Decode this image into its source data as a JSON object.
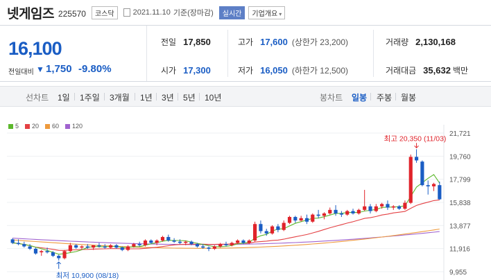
{
  "header": {
    "name": "넷게임즈",
    "code": "225570",
    "market": "코스닥",
    "date": "2021.11.10",
    "basis": "기준(장마감)",
    "realtime": "실시간",
    "company_info": "기업개요",
    "company_info_chevron": "▾"
  },
  "price": {
    "current": "16,100",
    "change_label": "전일대비",
    "change_arrow": "▼",
    "change_amount": "1,750",
    "change_pct": "-9.80%"
  },
  "stats": {
    "prev_label": "전일",
    "prev_value": "17,850",
    "high_label": "고가",
    "high_value": "17,600",
    "upper_limit": "(상한가 23,200)",
    "volume_label": "거래량",
    "volume_value": "2,130,168",
    "open_label": "시가",
    "open_value": "17,300",
    "low_label": "저가",
    "low_value": "16,050",
    "lower_limit": "(하한가 12,500)",
    "turnover_label": "거래대금",
    "turnover_value": "35,632",
    "turnover_unit": "백만"
  },
  "tabs": {
    "line_label": "선차트",
    "line_periods": [
      "1일",
      "1주일",
      "3개월",
      "1년",
      "3년",
      "5년",
      "10년"
    ],
    "candle_label": "봉차트",
    "candle_periods": [
      "일봉",
      "주봉",
      "월봉"
    ],
    "candle_selected": "일봉"
  },
  "colors": {
    "up": "#e0232a",
    "down": "#1a5dc4",
    "ma5": "#5cb82c",
    "ma20": "#e44043",
    "ma60": "#ee9a3d",
    "ma120": "#a063cf"
  },
  "chart_data": {
    "type": "candlestick",
    "y_ticks": [
      "21,721",
      "19,760",
      "17,799",
      "15,838",
      "13,877",
      "11,916",
      "9,955"
    ],
    "ylim": [
      9955,
      21721
    ],
    "legend": [
      "5",
      "20",
      "60",
      "120"
    ],
    "high_annotation": "최고 20,350 (11/03)",
    "low_annotation": "최저 10,900 (08/18)",
    "candles": [
      [
        12700,
        12800,
        12300,
        12400
      ],
      [
        12400,
        12700,
        12200,
        12300
      ],
      [
        12300,
        12500,
        12000,
        12100
      ],
      [
        12100,
        12300,
        11800,
        11900
      ],
      [
        11900,
        12000,
        11400,
        11500
      ],
      [
        11600,
        11800,
        11300,
        11700
      ],
      [
        11700,
        12000,
        11500,
        11600
      ],
      [
        11600,
        11700,
        11200,
        11300
      ],
      [
        11300,
        11400,
        10900,
        11100
      ],
      [
        11100,
        11800,
        11000,
        11700
      ],
      [
        11700,
        12400,
        11600,
        12200
      ],
      [
        12200,
        12300,
        11900,
        12000
      ],
      [
        12000,
        12200,
        11800,
        12100
      ],
      [
        12100,
        12300,
        11900,
        12000
      ],
      [
        12000,
        12200,
        11800,
        12200
      ],
      [
        12200,
        12400,
        12000,
        12100
      ],
      [
        12100,
        12300,
        11900,
        12000
      ],
      [
        12000,
        12300,
        11900,
        12200
      ],
      [
        12200,
        12300,
        11900,
        12000
      ],
      [
        12000,
        12100,
        11700,
        11800
      ],
      [
        11800,
        12200,
        11700,
        12100
      ],
      [
        12100,
        12400,
        12000,
        12300
      ],
      [
        12300,
        12500,
        12100,
        12200
      ],
      [
        12200,
        12700,
        12100,
        12600
      ],
      [
        12600,
        12700,
        12300,
        12400
      ],
      [
        12400,
        12700,
        12200,
        12600
      ],
      [
        12600,
        13000,
        12500,
        12900
      ],
      [
        12900,
        13100,
        12500,
        12600
      ],
      [
        12600,
        12800,
        12400,
        12500
      ],
      [
        12500,
        12700,
        12300,
        12400
      ],
      [
        12400,
        12600,
        12200,
        12500
      ],
      [
        12500,
        12600,
        12200,
        12300
      ],
      [
        12300,
        12400,
        12000,
        12100
      ],
      [
        12100,
        12300,
        11900,
        12000
      ],
      [
        12000,
        12100,
        11700,
        11900
      ],
      [
        11900,
        12200,
        11800,
        12100
      ],
      [
        12100,
        12400,
        12000,
        12300
      ],
      [
        12300,
        12500,
        12100,
        12200
      ],
      [
        12200,
        12500,
        12100,
        12400
      ],
      [
        12400,
        12700,
        12300,
        12600
      ],
      [
        12600,
        12700,
        12300,
        12400
      ],
      [
        12400,
        12700,
        12300,
        12600
      ],
      [
        12600,
        14200,
        12500,
        14000
      ],
      [
        14000,
        14300,
        13200,
        13400
      ],
      [
        13400,
        13600,
        13000,
        13200
      ],
      [
        13200,
        13900,
        13100,
        13800
      ],
      [
        13800,
        14000,
        13300,
        13500
      ],
      [
        13500,
        14300,
        13400,
        14100
      ],
      [
        14100,
        14700,
        14000,
        14600
      ],
      [
        14600,
        14700,
        14100,
        14300
      ],
      [
        14300,
        14700,
        14200,
        14500
      ],
      [
        14500,
        14800,
        14000,
        14200
      ],
      [
        14200,
        14900,
        14100,
        14800
      ],
      [
        14800,
        15200,
        14500,
        14700
      ],
      [
        14700,
        15000,
        14400,
        14900
      ],
      [
        14900,
        15400,
        14800,
        15200
      ],
      [
        15200,
        15600,
        14700,
        14900
      ],
      [
        14900,
        15100,
        14600,
        14800
      ],
      [
        14800,
        15200,
        14700,
        15100
      ],
      [
        15100,
        15300,
        14800,
        14900
      ],
      [
        14900,
        15300,
        14800,
        15200
      ],
      [
        15200,
        16900,
        15100,
        15500
      ],
      [
        15500,
        15700,
        14900,
        15100
      ],
      [
        15100,
        15700,
        15000,
        15500
      ],
      [
        15500,
        15800,
        15300,
        15700
      ],
      [
        15700,
        16000,
        15200,
        15400
      ],
      [
        15400,
        15600,
        15200,
        15500
      ],
      [
        15500,
        15600,
        15200,
        15300
      ],
      [
        15300,
        16000,
        15200,
        15800
      ],
      [
        15800,
        19900,
        15700,
        19700
      ],
      [
        19700,
        20350,
        19200,
        19400
      ],
      [
        19300,
        19400,
        17200,
        17300
      ],
      [
        17300,
        17700,
        16500,
        17200
      ],
      [
        17200,
        17500,
        16800,
        17400
      ],
      [
        17300,
        17600,
        16050,
        16100
      ]
    ],
    "ma5_end": [
      15600,
      16300,
      17100,
      17800,
      18300,
      18100,
      17500
    ],
    "ma20_end": [
      12900,
      14200,
      15700,
      16200
    ],
    "ma60_end": [
      12300,
      12900,
      13600,
      13950
    ],
    "ma120_end": [
      12200,
      12350,
      12700,
      12950
    ]
  }
}
